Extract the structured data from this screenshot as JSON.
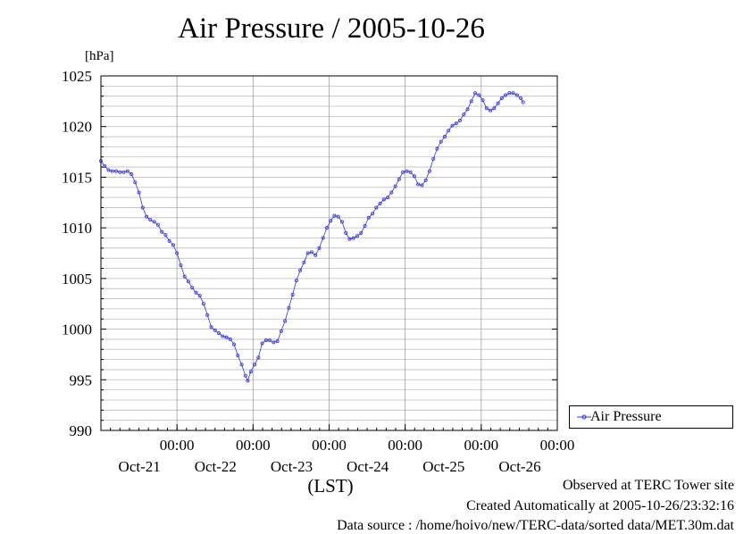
{
  "chart_data": {
    "type": "line",
    "title": "Air Pressure / 2005-10-26",
    "ylabel": "[hPa]",
    "xlabel": "(LST)",
    "ylim": [
      990,
      1025
    ],
    "yticks": [
      "990",
      "995",
      "1000",
      "1005",
      "1010",
      "1015",
      "1020",
      "1025"
    ],
    "grid": true,
    "legend_position": "bottom-right outside",
    "xticks": [
      {
        "x": 1.5,
        "time": "00:00",
        "date": "Oct-21"
      },
      {
        "x": 2.5,
        "time": "00:00",
        "date": "Oct-22"
      },
      {
        "x": 3.5,
        "time": "00:00",
        "date": "Oct-23"
      },
      {
        "x": 4.5,
        "time": "00:00",
        "date": "Oct-24"
      },
      {
        "x": 5.5,
        "time": "00:00",
        "date": "Oct-25"
      },
      {
        "x": 6.5,
        "time": "00:00",
        "date": "Oct-26"
      }
    ],
    "xlim": [
      0.5,
      6.5
    ],
    "x_note": "x is day index; integer = Oct-20+N noon",
    "series": [
      {
        "name": "Air Pressure",
        "color": "#3333ee",
        "marker": "open circle",
        "points": [
          [
            0.5,
            1016.6
          ],
          [
            0.55,
            1016.1
          ],
          [
            0.6,
            1015.7
          ],
          [
            0.65,
            1015.6
          ],
          [
            0.7,
            1015.6
          ],
          [
            0.75,
            1015.5
          ],
          [
            0.8,
            1015.5
          ],
          [
            0.85,
            1015.6
          ],
          [
            0.9,
            1015.3
          ],
          [
            0.95,
            1014.5
          ],
          [
            1.0,
            1013.5
          ],
          [
            1.05,
            1012.0
          ],
          [
            1.1,
            1011.1
          ],
          [
            1.15,
            1010.8
          ],
          [
            1.2,
            1010.6
          ],
          [
            1.25,
            1010.3
          ],
          [
            1.3,
            1009.6
          ],
          [
            1.35,
            1009.3
          ],
          [
            1.4,
            1008.7
          ],
          [
            1.45,
            1008.3
          ],
          [
            1.5,
            1007.5
          ],
          [
            1.55,
            1006.3
          ],
          [
            1.6,
            1005.2
          ],
          [
            1.65,
            1004.7
          ],
          [
            1.7,
            1004.1
          ],
          [
            1.75,
            1003.6
          ],
          [
            1.8,
            1003.3
          ],
          [
            1.85,
            1002.5
          ],
          [
            1.9,
            1001.4
          ],
          [
            1.95,
            1000.2
          ],
          [
            2.0,
            999.9
          ],
          [
            2.05,
            999.6
          ],
          [
            2.1,
            999.3
          ],
          [
            2.15,
            999.2
          ],
          [
            2.2,
            999.0
          ],
          [
            2.25,
            998.5
          ],
          [
            2.3,
            997.4
          ],
          [
            2.35,
            996.5
          ],
          [
            2.4,
            995.4
          ],
          [
            2.43,
            994.9
          ],
          [
            2.47,
            995.8
          ],
          [
            2.52,
            996.5
          ],
          [
            2.57,
            997.2
          ],
          [
            2.62,
            998.6
          ],
          [
            2.67,
            998.9
          ],
          [
            2.72,
            998.9
          ],
          [
            2.77,
            998.7
          ],
          [
            2.82,
            998.8
          ],
          [
            2.87,
            999.8
          ],
          [
            2.92,
            1000.8
          ],
          [
            2.97,
            1002.1
          ],
          [
            3.02,
            1003.4
          ],
          [
            3.07,
            1004.8
          ],
          [
            3.12,
            1005.8
          ],
          [
            3.17,
            1006.6
          ],
          [
            3.22,
            1007.5
          ],
          [
            3.27,
            1007.6
          ],
          [
            3.32,
            1007.3
          ],
          [
            3.37,
            1008.0
          ],
          [
            3.42,
            1009.0
          ],
          [
            3.47,
            1010.0
          ],
          [
            3.52,
            1010.7
          ],
          [
            3.57,
            1011.2
          ],
          [
            3.62,
            1011.1
          ],
          [
            3.67,
            1010.6
          ],
          [
            3.72,
            1009.5
          ],
          [
            3.77,
            1008.9
          ],
          [
            3.82,
            1009.0
          ],
          [
            3.87,
            1009.2
          ],
          [
            3.92,
            1009.5
          ],
          [
            3.97,
            1010.2
          ],
          [
            4.02,
            1011.0
          ],
          [
            4.07,
            1011.4
          ],
          [
            4.12,
            1012.0
          ],
          [
            4.17,
            1012.4
          ],
          [
            4.22,
            1012.8
          ],
          [
            4.27,
            1013.0
          ],
          [
            4.32,
            1013.5
          ],
          [
            4.37,
            1014.1
          ],
          [
            4.42,
            1014.8
          ],
          [
            4.47,
            1015.5
          ],
          [
            4.52,
            1015.6
          ],
          [
            4.57,
            1015.5
          ],
          [
            4.62,
            1015.1
          ],
          [
            4.67,
            1014.3
          ],
          [
            4.72,
            1014.2
          ],
          [
            4.77,
            1014.7
          ],
          [
            4.82,
            1015.6
          ],
          [
            4.87,
            1016.8
          ],
          [
            4.92,
            1017.8
          ],
          [
            4.97,
            1018.5
          ],
          [
            5.02,
            1019.0
          ],
          [
            5.07,
            1019.6
          ],
          [
            5.12,
            1020.1
          ],
          [
            5.17,
            1020.3
          ],
          [
            5.22,
            1020.6
          ],
          [
            5.27,
            1021.2
          ],
          [
            5.32,
            1021.7
          ],
          [
            5.37,
            1022.5
          ],
          [
            5.42,
            1023.3
          ],
          [
            5.47,
            1023.1
          ],
          [
            5.52,
            1022.6
          ],
          [
            5.57,
            1021.8
          ],
          [
            5.62,
            1021.6
          ],
          [
            5.67,
            1021.8
          ],
          [
            5.72,
            1022.3
          ],
          [
            5.77,
            1022.8
          ],
          [
            5.82,
            1023.1
          ],
          [
            5.87,
            1023.3
          ],
          [
            5.92,
            1023.3
          ],
          [
            5.97,
            1023.1
          ],
          [
            6.02,
            1022.8
          ],
          [
            6.05,
            1022.4
          ]
        ]
      }
    ]
  },
  "header": {
    "title": "Air Pressure / 2005-10-26",
    "y_unit": "[hPa]",
    "x_unit": "(LST)"
  },
  "legend": {
    "label": "Air Pressure"
  },
  "footer": {
    "line1": "Observed at TERC Tower site",
    "line2": "Created Automatically at 2005-10-26/23:32:16",
    "line3": "Data source : /home/hoivo/new/TERC-data/sorted  data/MET.30m.dat"
  }
}
